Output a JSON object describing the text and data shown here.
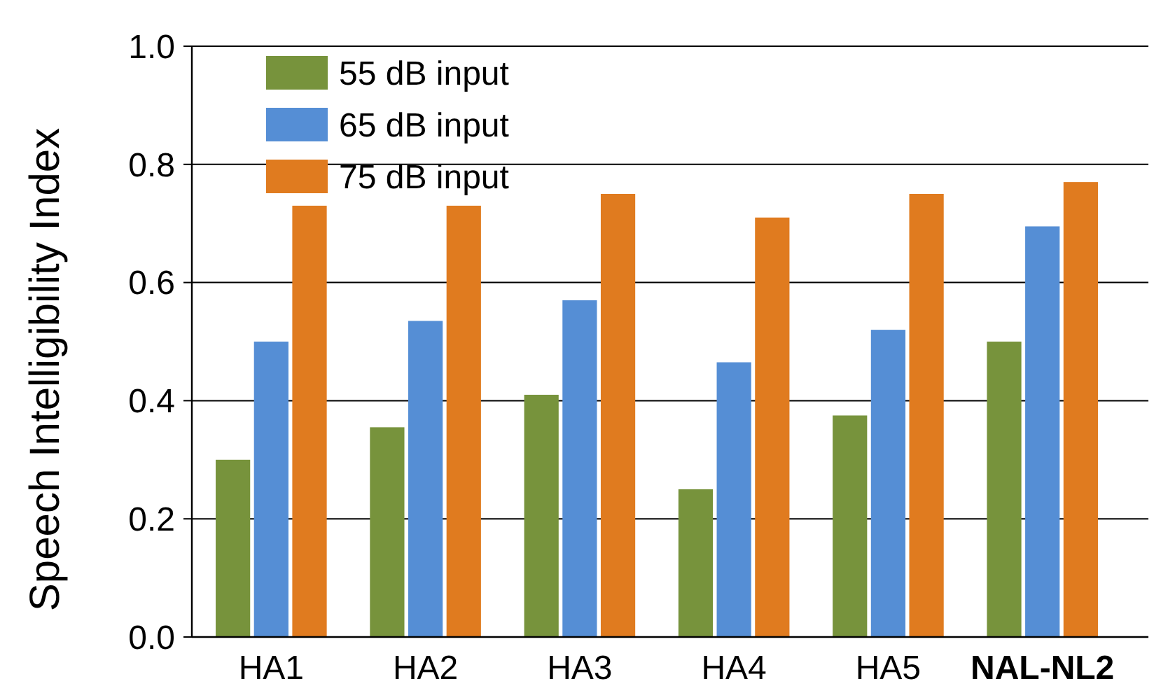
{
  "chart_data": {
    "type": "bar",
    "ylabel": "Speech Intelligibility Index",
    "categories": [
      "HA1",
      "HA2",
      "HA3",
      "HA4",
      "HA5",
      "NAL-NL2"
    ],
    "series": [
      {
        "name": "55 dB input",
        "color": "#77933c",
        "values": [
          0.3,
          0.355,
          0.41,
          0.25,
          0.375,
          0.5
        ]
      },
      {
        "name": "65 dB input",
        "color": "#558ed5",
        "values": [
          0.5,
          0.535,
          0.57,
          0.465,
          0.52,
          0.695
        ]
      },
      {
        "name": "75 dB input",
        "color": "#e07b1f",
        "values": [
          0.73,
          0.73,
          0.75,
          0.71,
          0.75,
          0.77
        ]
      }
    ],
    "ylim": [
      0,
      1
    ],
    "yticks": [
      {
        "value": 0,
        "label": "0.0"
      },
      {
        "value": 0.2,
        "label": "0.2"
      },
      {
        "value": 0.4,
        "label": "0.4"
      },
      {
        "value": 0.6,
        "label": "0.6"
      },
      {
        "value": 0.8,
        "label": "0.8"
      },
      {
        "value": 1,
        "label": "1.0"
      }
    ],
    "grid": "y",
    "legend": "top left"
  }
}
